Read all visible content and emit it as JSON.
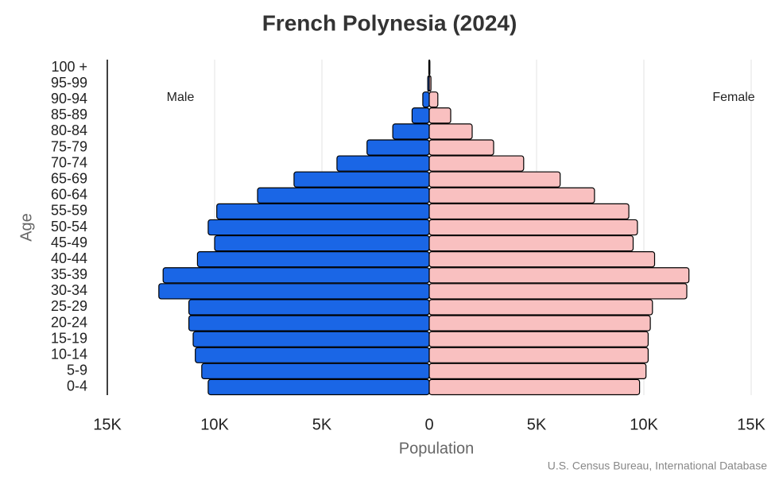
{
  "chart_data": {
    "type": "pyramid",
    "title": "French Polynesia (2024)",
    "x_label": "Population",
    "y_label": "Age",
    "source": "U.S. Census Bureau, International Database",
    "categories": [
      "0-4",
      "5-9",
      "10-14",
      "15-19",
      "20-24",
      "25-29",
      "30-34",
      "35-39",
      "40-44",
      "45-49",
      "50-54",
      "55-59",
      "60-64",
      "65-69",
      "70-74",
      "75-79",
      "80-84",
      "85-89",
      "90-94",
      "95-99",
      "100 +"
    ],
    "series": [
      {
        "name": "Male",
        "color": "#1a66e6",
        "values": [
          10300,
          10600,
          10900,
          11000,
          11200,
          11200,
          12600,
          12400,
          10800,
          10000,
          10300,
          9900,
          8000,
          6300,
          4300,
          2900,
          1700,
          800,
          300,
          70,
          20
        ]
      },
      {
        "name": "Female",
        "color": "#f9c0c0",
        "values": [
          9800,
          10100,
          10200,
          10200,
          10300,
          10400,
          12000,
          12100,
          10500,
          9500,
          9700,
          9300,
          7700,
          6100,
          4400,
          3000,
          2000,
          1000,
          400,
          80,
          30
        ]
      }
    ],
    "xlim": [
      -15000,
      15000
    ],
    "xticks": [
      {
        "value": -15000,
        "label": "15K"
      },
      {
        "value": -10000,
        "label": "10K"
      },
      {
        "value": -5000,
        "label": "5K"
      },
      0,
      {
        "value": 5000,
        "label": "5K"
      },
      {
        "value": 10000,
        "label": "10K"
      },
      {
        "value": 15000,
        "label": "15K"
      }
    ],
    "grid": true
  }
}
